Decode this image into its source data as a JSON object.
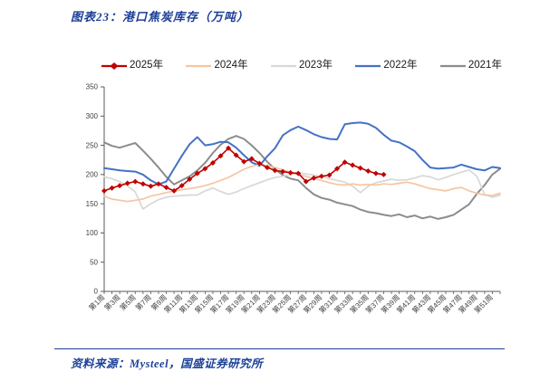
{
  "header": {
    "title": "图表23：港口焦炭库存（万吨）"
  },
  "footer": {
    "source": "资料来源：Mysteel，国盛证券研究所"
  },
  "colors": {
    "title_navy": "#1c3e96",
    "footer_navy": "#1c4299",
    "axis_line": "#595959",
    "tick_text": "#404040"
  },
  "chart_data": {
    "type": "line",
    "title": "港口焦炭库存（万吨）",
    "xlabel": "",
    "ylabel": "",
    "ylim": [
      0,
      350
    ],
    "y_ticks": [
      0,
      50,
      100,
      150,
      200,
      250,
      300,
      350
    ],
    "weeks_total": 52,
    "x_tick_weeks": [
      1,
      3,
      5,
      7,
      9,
      11,
      13,
      15,
      17,
      19,
      21,
      23,
      25,
      27,
      29,
      31,
      33,
      35,
      37,
      39,
      41,
      43,
      45,
      47,
      49,
      51
    ],
    "x_tick_labels": [
      "第1周",
      "第3周",
      "第5周",
      "第7周",
      "第9周",
      "第11周",
      "第13周",
      "第15周",
      "第17周",
      "第19周",
      "第21周",
      "第23周",
      "第25周",
      "第27周",
      "第29周",
      "第31周",
      "第33周",
      "第35周",
      "第37周",
      "第39周",
      "第41周",
      "第43周",
      "第45周",
      "第47周",
      "第49周",
      "第51周"
    ],
    "grid": false,
    "legend_position": "top",
    "series": [
      {
        "name": "2025年",
        "color": "#C00000",
        "marker": "diamond",
        "width": 1.6,
        "values": [
          172,
          177,
          181,
          185,
          188,
          184,
          180,
          184,
          178,
          172,
          181,
          192,
          202,
          210,
          220,
          232,
          245,
          233,
          222,
          227,
          219,
          212,
          207,
          205,
          203,
          202,
          188,
          194,
          197,
          199,
          210,
          221,
          216,
          211,
          206,
          202,
          200
        ]
      },
      {
        "name": "2024年",
        "color": "#F6C5A2",
        "marker": "none",
        "width": 1.7,
        "values": [
          163,
          158,
          156,
          154,
          156,
          158,
          163,
          166,
          169,
          172,
          174,
          176,
          178,
          181,
          185,
          190,
          195,
          202,
          209,
          214,
          217,
          215,
          212,
          208,
          204,
          200,
          197,
          193,
          190,
          186,
          183,
          182,
          184,
          182,
          183,
          182,
          184,
          183,
          185,
          187,
          184,
          180,
          176,
          174,
          172,
          176,
          178,
          172,
          168,
          165,
          164,
          168
        ]
      },
      {
        "name": "2023年",
        "color": "#D8D8D8",
        "marker": "none",
        "width": 1.7,
        "values": [
          196,
          193,
          188,
          181,
          170,
          141,
          150,
          157,
          161,
          163,
          164,
          165,
          165,
          172,
          177,
          171,
          166,
          170,
          176,
          181,
          186,
          191,
          195,
          197,
          200,
          203,
          201,
          199,
          197,
          193,
          190,
          187,
          180,
          169,
          180,
          186,
          189,
          192,
          190,
          191,
          194,
          198,
          196,
          191,
          195,
          200,
          204,
          208,
          197,
          166,
          161,
          165
        ]
      },
      {
        "name": "2022年",
        "color": "#4472C4",
        "marker": "none",
        "width": 2,
        "values": [
          211,
          209,
          207,
          206,
          205,
          200,
          190,
          183,
          188,
          210,
          232,
          252,
          264,
          250,
          252,
          256,
          255,
          246,
          233,
          221,
          215,
          231,
          245,
          267,
          276,
          282,
          276,
          269,
          264,
          261,
          260,
          286,
          288,
          289,
          287,
          280,
          268,
          258,
          255,
          248,
          240,
          225,
          212,
          210,
          211,
          212,
          217,
          213,
          209,
          207,
          213,
          211
        ]
      },
      {
        "name": "2021年",
        "color": "#8C8C8C",
        "marker": "none",
        "width": 2,
        "values": [
          255,
          249,
          246,
          250,
          254,
          241,
          227,
          212,
          196,
          183,
          190,
          197,
          207,
          220,
          237,
          251,
          261,
          266,
          261,
          250,
          237,
          222,
          209,
          199,
          193,
          190,
          177,
          166,
          160,
          157,
          152,
          149,
          146,
          140,
          136,
          134,
          131,
          129,
          132,
          127,
          130,
          125,
          128,
          124,
          127,
          131,
          140,
          149,
          167,
          182,
          200,
          210
        ]
      }
    ]
  }
}
